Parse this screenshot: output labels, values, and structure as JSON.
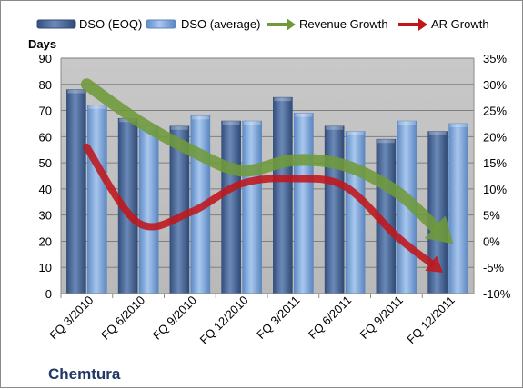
{
  "chart_data": {
    "type": "bar",
    "categories": [
      "FQ 3/2010",
      "FQ 6/2010",
      "FQ 9/2010",
      "FQ 12/2010",
      "FQ 3/2011",
      "FQ 6/2011",
      "FQ 9/2011",
      "FQ 12/2011"
    ],
    "series": [
      {
        "name": "DSO (EOQ)",
        "type": "bar",
        "axis": "left",
        "color": "#4f6d9c",
        "values": [
          78,
          67,
          64,
          66,
          75,
          64,
          59,
          62
        ]
      },
      {
        "name": "DSO (average)",
        "type": "bar",
        "axis": "left",
        "color": "#7ea6d8",
        "values": [
          72,
          64,
          68,
          66,
          69,
          62,
          66,
          65
        ]
      },
      {
        "name": "Revenue Growth",
        "type": "arrow-line",
        "axis": "right",
        "color": "#6f9a3a",
        "x": [
          0,
          1,
          2,
          3,
          4,
          5,
          6,
          7.1
        ],
        "values": [
          30,
          23,
          17.5,
          13.5,
          15.5,
          14.5,
          9.5,
          -0.5
        ]
      },
      {
        "name": "AR Growth",
        "type": "arrow-line",
        "axis": "right",
        "color": "#c0161b",
        "x": [
          0,
          1,
          2,
          3,
          4,
          5,
          6,
          6.9
        ],
        "values": [
          18,
          3.5,
          5.5,
          11,
          12,
          10.5,
          1,
          -6
        ]
      }
    ],
    "ylabel": "Days",
    "ylim": [
      0,
      90
    ],
    "yticks": [
      0,
      10,
      20,
      30,
      40,
      50,
      60,
      70,
      80,
      90
    ],
    "y2lim": [
      -10,
      35
    ],
    "y2ticks": [
      "-10%",
      "-5%",
      "0%",
      "5%",
      "10%",
      "15%",
      "20%",
      "25%",
      "30%",
      "35%"
    ],
    "legend": "top",
    "grid": true,
    "company": "Chemtura"
  }
}
